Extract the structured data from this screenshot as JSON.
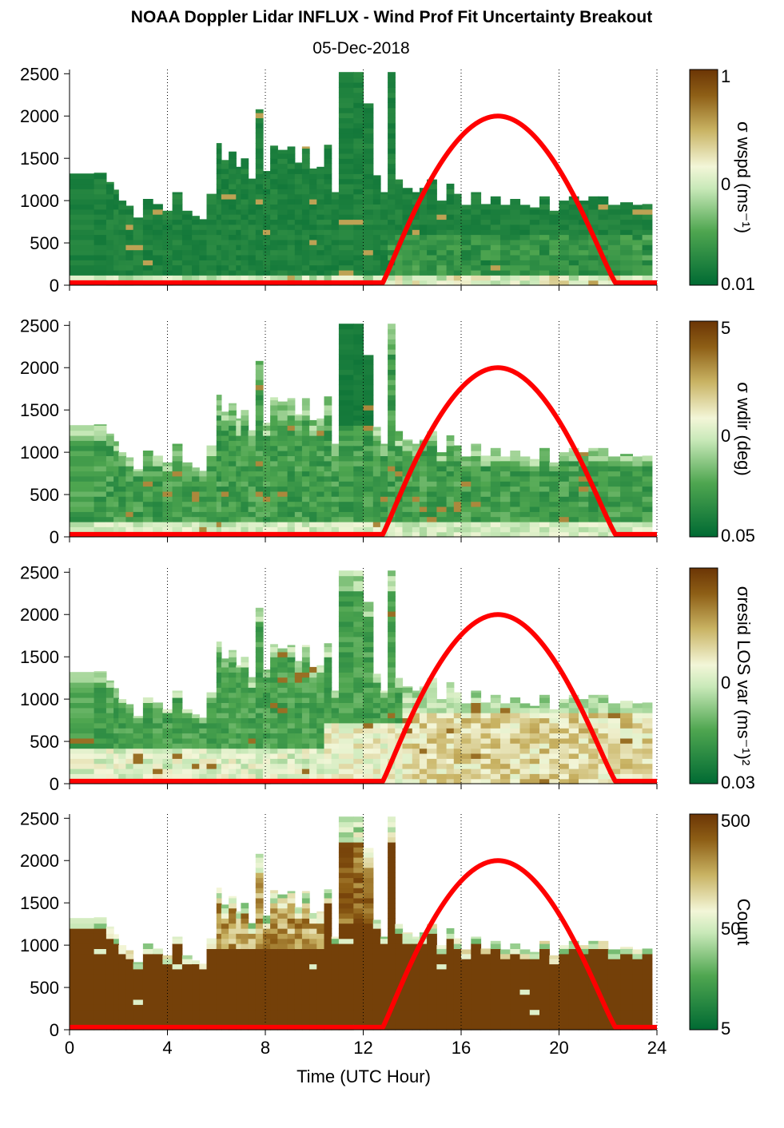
{
  "title": "NOAA Doppler Lidar INFLUX - Wind Prof Fit Uncertainty Breakout",
  "subtitle": "05-Dec-2018",
  "colors": {
    "curve": "#ff0000",
    "dark_green": "#006a33",
    "dark_brown": "#6b3505"
  },
  "chart_data": [
    {
      "type": "heatmap",
      "ylabel": "",
      "xlim": [
        0,
        24
      ],
      "ylim": [
        0,
        2550
      ],
      "yticks": [
        0,
        500,
        1000,
        1500,
        2000,
        2500
      ],
      "colorbar": {
        "label": "σ wspd (ms⁻¹)",
        "tick_labels": [
          "1",
          "0",
          "0.01"
        ],
        "scale": "log"
      },
      "curve": {
        "x": [
          0,
          12.8,
          14,
          15.5,
          17.5,
          19.5,
          21,
          22.3,
          24
        ],
        "y": [
          30,
          30,
          850,
          1650,
          2000,
          1650,
          850,
          30,
          30
        ]
      }
    },
    {
      "type": "heatmap",
      "ylabel": "",
      "xlim": [
        0,
        24
      ],
      "ylim": [
        0,
        2550
      ],
      "yticks": [
        0,
        500,
        1000,
        1500,
        2000,
        2500
      ],
      "colorbar": {
        "label": "σ wdir (deg)",
        "tick_labels": [
          "5",
          "0",
          "0.05"
        ],
        "scale": "log"
      },
      "curve": {
        "x": [
          0,
          12.8,
          14,
          15.5,
          17.5,
          19.5,
          21,
          22.3,
          24
        ],
        "y": [
          30,
          30,
          850,
          1650,
          2000,
          1650,
          850,
          30,
          30
        ]
      }
    },
    {
      "type": "heatmap",
      "ylabel": "",
      "xlim": [
        0,
        24
      ],
      "ylim": [
        0,
        2550
      ],
      "yticks": [
        0,
        500,
        1000,
        1500,
        2000,
        2500
      ],
      "colorbar": {
        "label": "σresid LOS var (ms⁻¹)²",
        "tick_labels": [
          "",
          "0",
          "0.03"
        ],
        "scale": "log"
      },
      "curve": {
        "x": [
          0,
          12.8,
          14,
          15.5,
          17.5,
          19.5,
          21,
          22.3,
          24
        ],
        "y": [
          30,
          30,
          850,
          1650,
          2000,
          1650,
          850,
          30,
          30
        ]
      }
    },
    {
      "type": "heatmap",
      "ylabel": "",
      "xlim": [
        0,
        24
      ],
      "ylim": [
        0,
        2550
      ],
      "yticks": [
        0,
        500,
        1000,
        1500,
        2000,
        2500
      ],
      "colorbar": {
        "label": "Count",
        "tick_labels": [
          "500",
          "50",
          "5"
        ],
        "scale": "log"
      },
      "curve": {
        "x": [
          0,
          12.8,
          14,
          15.5,
          17.5,
          19.5,
          21,
          22.3,
          24
        ],
        "y": [
          30,
          30,
          850,
          1650,
          2000,
          1650,
          850,
          30,
          30
        ]
      }
    }
  ],
  "shared_x": {
    "xlabel": "Time (UTC Hour)",
    "xticks": [
      0,
      4,
      8,
      12,
      16,
      20,
      24
    ],
    "gridlines": [
      4,
      8,
      12,
      16,
      20,
      24
    ]
  },
  "data_columns": {
    "start": [
      0,
      1.0,
      1.5,
      1.8,
      2.0,
      2.3,
      2.6,
      3.0,
      3.4,
      3.8,
      4.2,
      4.6,
      5.0,
      5.3,
      5.6,
      6.0,
      6.2,
      6.5,
      6.8,
      7.0,
      7.3,
      7.6,
      7.9,
      8.2,
      8.5,
      8.9,
      9.2,
      9.5,
      9.8,
      10.1,
      10.4,
      10.7,
      11.0,
      11.6,
      12.0,
      12.4,
      12.7,
      13.0,
      13.3,
      13.6,
      14.0,
      14.3,
      14.6,
      15.0,
      15.4,
      15.7,
      16.0,
      16.4,
      16.8,
      17.2,
      17.6,
      18.0,
      18.4,
      18.8,
      19.2,
      19.6,
      20.0,
      20.4,
      20.8,
      21.2,
      21.6,
      22.0,
      22.5,
      23.0,
      23.4
    ],
    "end_time": 23.8,
    "top": [
      1320,
      1330,
      1220,
      1130,
      1000,
      940,
      800,
      1020,
      960,
      880,
      1100,
      880,
      820,
      780,
      1080,
      1680,
      1480,
      1580,
      1400,
      1500,
      1260,
      2080,
      1350,
      1650,
      1600,
      1640,
      1450,
      1640,
      1380,
      1400,
      1660,
      1100,
      2520,
      2520,
      2150,
      1300,
      1100,
      2520,
      1250,
      1150,
      1100,
      1150,
      1250,
      1000,
      1200,
      1080,
      950,
      1100,
      960,
      1050,
      950,
      1020,
      950,
      920,
      1050,
      880,
      1000,
      1050,
      1000,
      1050,
      1050,
      950,
      980,
      950,
      960
    ]
  }
}
